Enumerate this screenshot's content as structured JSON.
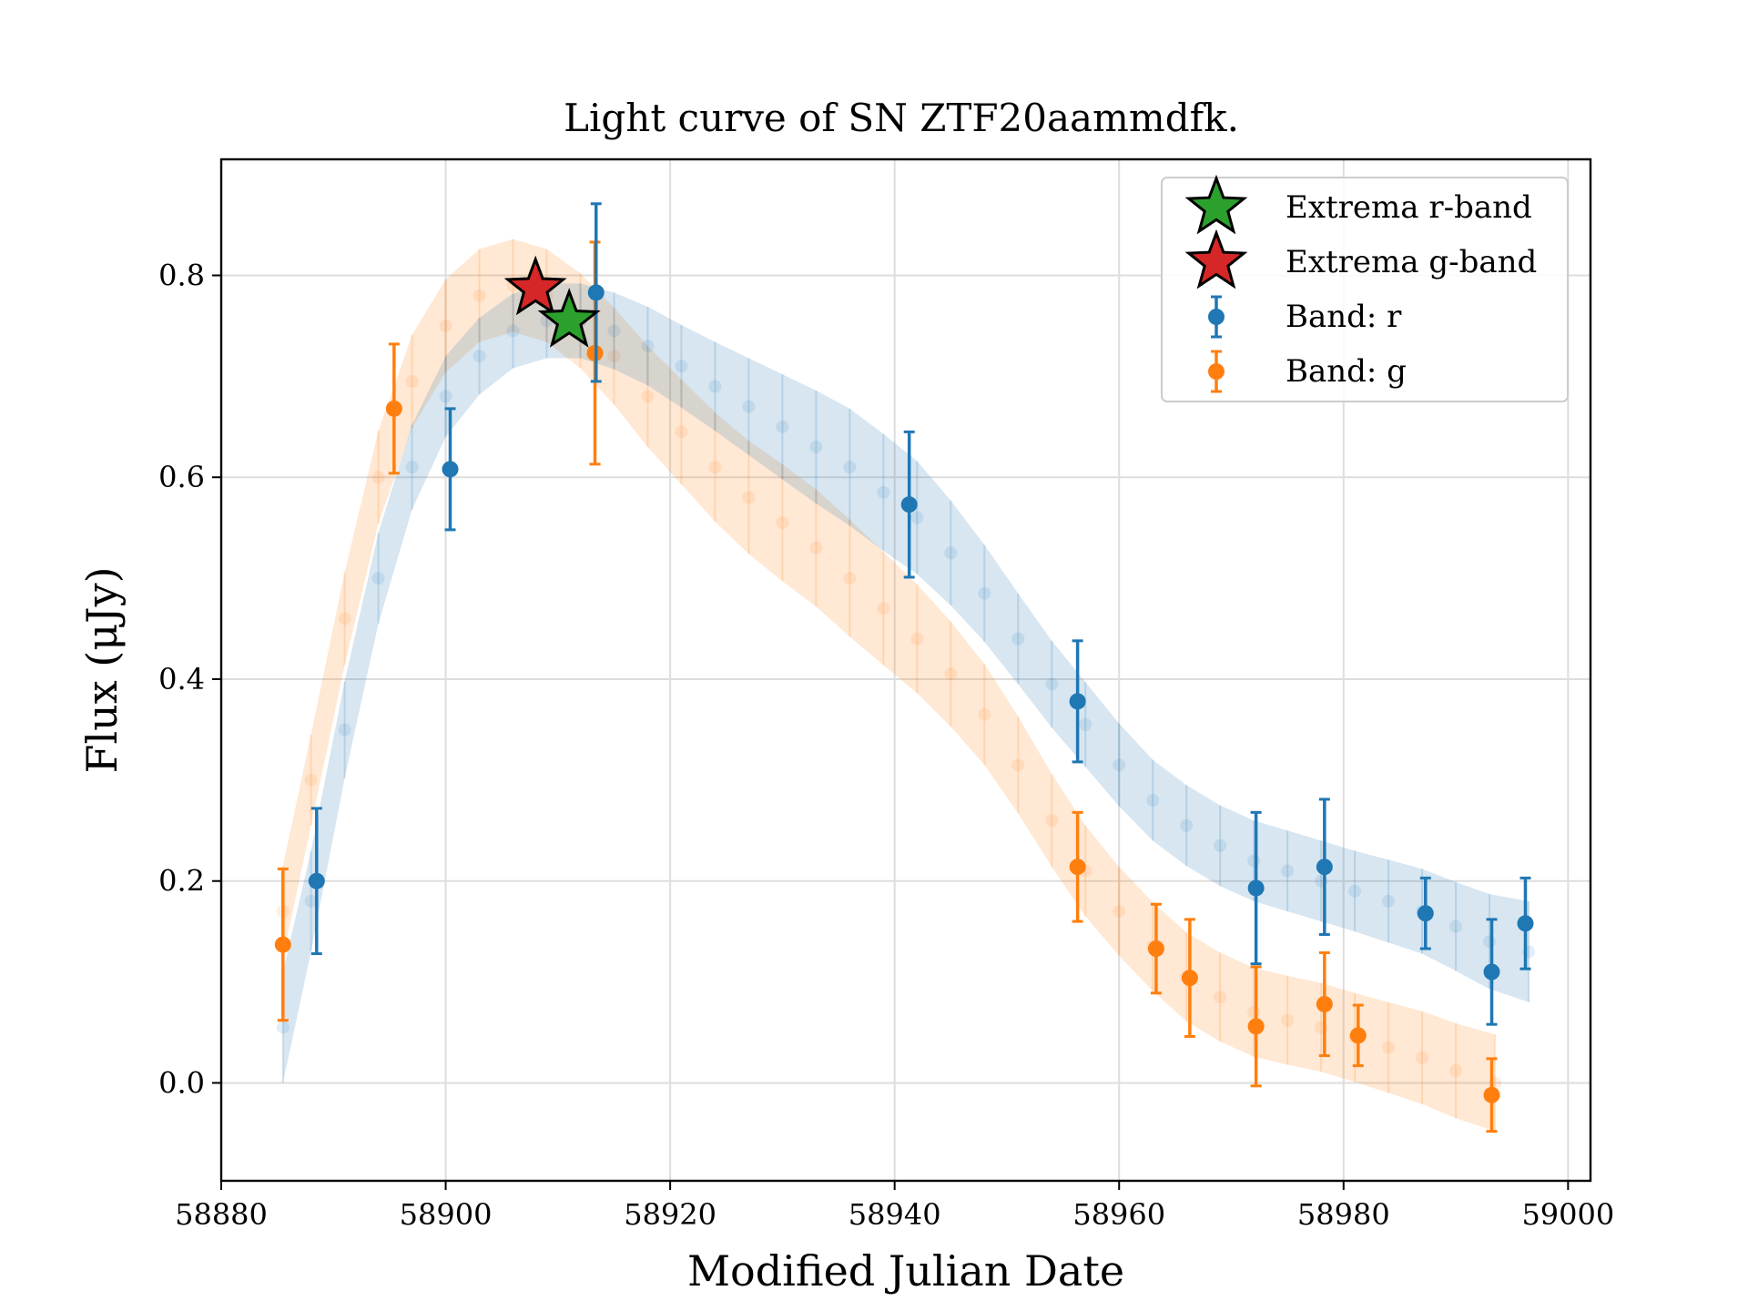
{
  "chart_data": {
    "type": "scatter",
    "title": "Light curve of SN ZTF20aammdfk.",
    "xlabel": "Modified Julian Date",
    "ylabel": "Flux (μJy)",
    "xlim": [
      58880,
      59002
    ],
    "ylim": [
      -0.097,
      0.915
    ],
    "xticks": [
      58880,
      58900,
      58920,
      58940,
      58960,
      58980,
      59000
    ],
    "yticks": [
      0.0,
      0.2,
      0.4,
      0.6,
      0.8
    ],
    "xtick_labels": [
      "58880",
      "58900",
      "58920",
      "58940",
      "58960",
      "58980",
      "59000"
    ],
    "ytick_labels": [
      "0.0",
      "0.2",
      "0.4",
      "0.6",
      "0.8"
    ],
    "grid": true,
    "legend_position": "top-right",
    "colors": {
      "r": "#1f77b4",
      "g": "#ff7f0e",
      "extrema_r": "#2ca02c",
      "extrema_g": "#d62728"
    },
    "legend": [
      {
        "label": "Extrema r-band",
        "marker": "star",
        "color": "#2ca02c"
      },
      {
        "label": "Extrema g-band",
        "marker": "star",
        "color": "#d62728"
      },
      {
        "label": "Band: r",
        "marker": "errorbar",
        "color": "#1f77b4"
      },
      {
        "label": "Band: g",
        "marker": "errorbar",
        "color": "#ff7f0e"
      }
    ],
    "series": [
      {
        "name": "Band: r",
        "color": "#1f77b4",
        "points": [
          {
            "x": 58888.5,
            "y": 0.2,
            "err": 0.072
          },
          {
            "x": 58900.4,
            "y": 0.608,
            "err": 0.06
          },
          {
            "x": 58913.4,
            "y": 0.783,
            "err": 0.088
          },
          {
            "x": 58941.3,
            "y": 0.573,
            "err": 0.072
          },
          {
            "x": 58956.3,
            "y": 0.378,
            "err": 0.06
          },
          {
            "x": 58972.2,
            "y": 0.193,
            "err": 0.075
          },
          {
            "x": 58978.3,
            "y": 0.214,
            "err": 0.067
          },
          {
            "x": 58987.3,
            "y": 0.168,
            "err": 0.035
          },
          {
            "x": 58993.2,
            "y": 0.11,
            "err": 0.052
          },
          {
            "x": 58996.2,
            "y": 0.158,
            "err": 0.045
          }
        ]
      },
      {
        "name": "Band: g",
        "color": "#ff7f0e",
        "points": [
          {
            "x": 58885.5,
            "y": 0.137,
            "err": 0.075
          },
          {
            "x": 58895.4,
            "y": 0.668,
            "err": 0.064
          },
          {
            "x": 58913.3,
            "y": 0.723,
            "err": 0.11
          },
          {
            "x": 58956.3,
            "y": 0.214,
            "err": 0.054
          },
          {
            "x": 58963.3,
            "y": 0.133,
            "err": 0.044
          },
          {
            "x": 58966.3,
            "y": 0.104,
            "err": 0.058
          },
          {
            "x": 58972.2,
            "y": 0.056,
            "err": 0.059
          },
          {
            "x": 58978.3,
            "y": 0.078,
            "err": 0.051
          },
          {
            "x": 58981.3,
            "y": 0.047,
            "err": 0.03
          },
          {
            "x": 58993.2,
            "y": -0.012,
            "err": 0.036
          }
        ]
      }
    ],
    "model_r": {
      "color": "#1f77b4",
      "x": [
        58885.5,
        58888,
        58891,
        58894,
        58897,
        58900,
        58903,
        58906,
        58909,
        58912,
        58915,
        58918,
        58921,
        58924,
        58927,
        58930,
        58933,
        58936,
        58939,
        58942,
        58945,
        58948,
        58951,
        58954,
        58957,
        58960,
        58963,
        58966,
        58969,
        58972,
        58975,
        58978,
        58981,
        58984,
        58987,
        58990,
        58993,
        58996.5
      ],
      "mean": [
        0.055,
        0.18,
        0.35,
        0.5,
        0.61,
        0.68,
        0.72,
        0.745,
        0.755,
        0.755,
        0.745,
        0.73,
        0.71,
        0.69,
        0.67,
        0.65,
        0.63,
        0.61,
        0.585,
        0.56,
        0.525,
        0.485,
        0.44,
        0.395,
        0.355,
        0.315,
        0.28,
        0.255,
        0.235,
        0.22,
        0.21,
        0.2,
        0.19,
        0.18,
        0.17,
        0.155,
        0.14,
        0.13
      ],
      "sigma": [
        0.055,
        0.05,
        0.048,
        0.045,
        0.042,
        0.04,
        0.038,
        0.037,
        0.037,
        0.037,
        0.038,
        0.039,
        0.041,
        0.044,
        0.048,
        0.052,
        0.056,
        0.058,
        0.058,
        0.056,
        0.052,
        0.048,
        0.045,
        0.043,
        0.042,
        0.041,
        0.04,
        0.04,
        0.04,
        0.04,
        0.04,
        0.04,
        0.04,
        0.041,
        0.042,
        0.044,
        0.047,
        0.05
      ]
    },
    "model_g": {
      "color": "#ff7f0e",
      "x": [
        58885.5,
        58888,
        58891,
        58894,
        58897,
        58900,
        58903,
        58906,
        58909,
        58912,
        58915,
        58918,
        58921,
        58924,
        58927,
        58930,
        58933,
        58936,
        58939,
        58942,
        58945,
        58948,
        58951,
        58954,
        58957,
        58960,
        58963,
        58966,
        58969,
        58972,
        58975,
        58978,
        58981,
        58984,
        58987,
        58990,
        58993.5
      ],
      "mean": [
        0.17,
        0.3,
        0.46,
        0.6,
        0.695,
        0.75,
        0.78,
        0.79,
        0.78,
        0.755,
        0.72,
        0.68,
        0.645,
        0.61,
        0.58,
        0.555,
        0.53,
        0.5,
        0.47,
        0.44,
        0.405,
        0.365,
        0.315,
        0.26,
        0.21,
        0.17,
        0.135,
        0.105,
        0.085,
        0.07,
        0.062,
        0.055,
        0.045,
        0.035,
        0.025,
        0.012,
        0.0
      ],
      "sigma": [
        0.045,
        0.045,
        0.046,
        0.046,
        0.046,
        0.046,
        0.046,
        0.046,
        0.046,
        0.047,
        0.048,
        0.05,
        0.052,
        0.054,
        0.056,
        0.058,
        0.058,
        0.058,
        0.056,
        0.054,
        0.052,
        0.05,
        0.048,
        0.046,
        0.045,
        0.044,
        0.044,
        0.044,
        0.044,
        0.044,
        0.044,
        0.044,
        0.044,
        0.045,
        0.046,
        0.047,
        0.048
      ]
    },
    "extrema": [
      {
        "name": "Extrema r-band",
        "x": 58911.0,
        "y": 0.755,
        "color": "#2ca02c"
      },
      {
        "name": "Extrema g-band",
        "x": 58908.0,
        "y": 0.787,
        "color": "#d62728"
      }
    ]
  }
}
